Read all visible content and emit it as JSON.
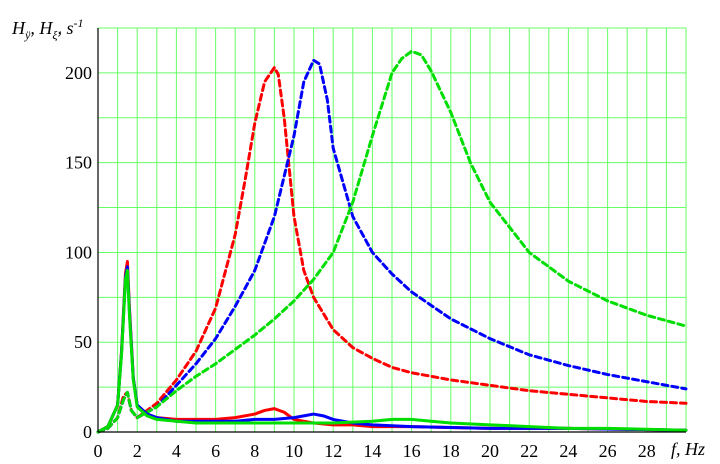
{
  "chart_data": {
    "type": "line",
    "title": "",
    "ylabel_parts": {
      "h1": "H",
      "h1_sub": "ÿ",
      "sep1": ", ",
      "h2": "H",
      "h2_sub": "ξ̇",
      "sep2": ", ",
      "unit": "s",
      "unit_sup": "-1"
    },
    "xlabel": "f, Hz",
    "xlim": [
      0,
      30
    ],
    "ylim": [
      0,
      225
    ],
    "xticks": [
      0,
      2,
      4,
      6,
      8,
      10,
      12,
      14,
      16,
      18,
      20,
      22,
      24,
      26,
      28
    ],
    "yticks": [
      0,
      50,
      100,
      150,
      200
    ],
    "grid": true,
    "grid_color": "#66ff66",
    "series_colors": {
      "red": "#ff0000",
      "blue": "#0000ff",
      "green": "#00dd00"
    },
    "series": [
      {
        "color": "#ff0000",
        "style": "dashed",
        "x": [
          0,
          0.5,
          1,
          1.3,
          1.5,
          1.7,
          2,
          3,
          4,
          5,
          6,
          7,
          7.5,
          8,
          8.5,
          9,
          9.2,
          9.5,
          10,
          10.5,
          11,
          12,
          13,
          14,
          15,
          16,
          18,
          20,
          22,
          24,
          26,
          28,
          30
        ],
        "y": [
          0,
          2,
          8,
          20,
          22,
          12,
          8,
          16,
          29,
          45,
          69,
          110,
          140,
          172,
          195,
          203,
          199,
          175,
          120,
          90,
          75,
          57,
          47,
          41,
          36,
          33,
          29,
          26,
          23,
          21,
          19,
          17,
          16
        ]
      },
      {
        "color": "#0000ff",
        "style": "dashed",
        "x": [
          0,
          0.5,
          1,
          1.3,
          1.5,
          1.7,
          2,
          3,
          4,
          5,
          6,
          7,
          8,
          9,
          10,
          10.5,
          11,
          11.3,
          11.7,
          12,
          13,
          14,
          15,
          16,
          18,
          20,
          22,
          24,
          26,
          28,
          30
        ],
        "y": [
          0,
          2,
          8,
          18,
          22,
          12,
          8,
          14,
          26,
          38,
          52,
          70,
          90,
          120,
          165,
          195,
          207,
          205,
          185,
          158,
          120,
          100,
          88,
          78,
          63,
          52,
          43,
          37,
          32,
          28,
          24
        ]
      },
      {
        "color": "#00dd00",
        "style": "dashed",
        "x": [
          0,
          0.5,
          1,
          1.3,
          1.5,
          1.7,
          2,
          3,
          4,
          5,
          6,
          7,
          8,
          9,
          10,
          11,
          12,
          13,
          14,
          15,
          15.5,
          16,
          16.5,
          17,
          18,
          19,
          20,
          22,
          24,
          26,
          28,
          30
        ],
        "y": [
          0,
          2,
          8,
          18,
          22,
          12,
          8,
          14,
          23,
          31,
          38,
          46,
          54,
          63,
          73,
          85,
          100,
          128,
          165,
          200,
          208,
          212,
          210,
          201,
          178,
          150,
          128,
          100,
          84,
          73,
          65,
          59
        ]
      },
      {
        "color": "#ff0000",
        "style": "solid",
        "x": [
          0,
          0.5,
          1,
          1.2,
          1.4,
          1.5,
          1.6,
          1.8,
          2,
          2.5,
          3,
          4,
          5,
          6,
          7,
          8,
          8.5,
          9,
          9.5,
          10,
          11,
          12,
          13,
          14,
          16,
          20,
          24,
          30
        ],
        "y": [
          0,
          3,
          15,
          45,
          88,
          95,
          70,
          30,
          15,
          10,
          8,
          7,
          7,
          7,
          8,
          10,
          12,
          13,
          11,
          7,
          5,
          4,
          4,
          3,
          3,
          2,
          2,
          1
        ]
      },
      {
        "color": "#0000ff",
        "style": "solid",
        "x": [
          0,
          0.5,
          1,
          1.2,
          1.4,
          1.5,
          1.6,
          1.8,
          2,
          2.5,
          3,
          4,
          5,
          6,
          7,
          8,
          9,
          10,
          10.5,
          11,
          11.5,
          12,
          13,
          14,
          16,
          20,
          24,
          30
        ],
        "y": [
          0,
          3,
          15,
          44,
          86,
          92,
          68,
          30,
          15,
          10,
          8,
          6,
          6,
          6,
          6,
          7,
          7,
          8,
          9,
          10,
          9,
          7,
          5,
          4,
          3,
          2,
          2,
          1
        ]
      },
      {
        "color": "#00dd00",
        "style": "solid",
        "x": [
          0,
          0.5,
          1,
          1.2,
          1.4,
          1.5,
          1.6,
          1.8,
          2,
          2.5,
          3,
          4,
          5,
          6,
          8,
          10,
          12,
          14,
          15,
          16,
          17,
          18,
          20,
          22,
          24,
          26,
          30
        ],
        "y": [
          0,
          3,
          15,
          43,
          85,
          90,
          66,
          29,
          14,
          9,
          7,
          6,
          5,
          5,
          5,
          5,
          5,
          6,
          7,
          7,
          6,
          5,
          4,
          3,
          2,
          2,
          1
        ]
      }
    ]
  }
}
